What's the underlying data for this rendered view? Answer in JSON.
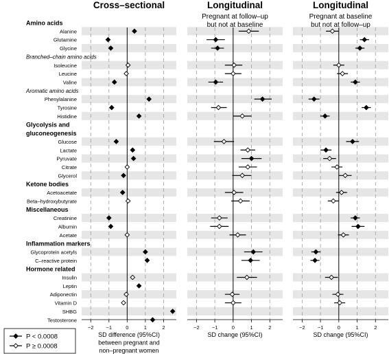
{
  "chart_data": {
    "type": "forest",
    "xlim": [
      -2.5,
      2.7
    ],
    "xticks": [
      -2,
      -1,
      0,
      1,
      2
    ],
    "tick_labels": [
      "−2",
      "−1",
      "0",
      "1",
      "2"
    ],
    "legend": {
      "placement": "bottom-left",
      "entries": [
        {
          "label": "P < 0.0008",
          "marker": "filled-diamond"
        },
        {
          "label": "P ≥ 0.0008",
          "marker": "open-diamond"
        }
      ]
    },
    "panels": [
      {
        "title": "Cross–sectional",
        "subtitle": [
          "",
          ""
        ],
        "xlabel": [
          "SD difference (95%CI)",
          "between pregnant and",
          "non–pregnant women"
        ]
      },
      {
        "title": "Longitudinal",
        "subtitle": [
          "Pregnant at follow–up",
          "but not at baseline"
        ],
        "xlabel": [
          "SD change (95%CI)",
          "",
          ""
        ]
      },
      {
        "title": "Longitudinal",
        "subtitle": [
          "Pregnant at baseline",
          "but not at follow–up"
        ],
        "xlabel": [
          "SD change (95%CI)",
          "",
          ""
        ]
      }
    ],
    "rows": [
      {
        "kind": "header",
        "label": "Amino acids"
      },
      {
        "kind": "item",
        "label": "Alanine",
        "shade": true,
        "values": [
          {
            "est": 0.4,
            "lo": 0.33,
            "hi": 0.47,
            "sig": true
          },
          {
            "est": 0.85,
            "lo": 0.3,
            "hi": 1.4,
            "sig": false
          },
          {
            "est": -0.35,
            "lo": -0.7,
            "hi": 0.0,
            "sig": false
          }
        ]
      },
      {
        "kind": "item",
        "label": "Glutamine",
        "shade": false,
        "values": [
          {
            "est": -1.05,
            "lo": -1.12,
            "hi": -0.98,
            "sig": true
          },
          {
            "est": -0.95,
            "lo": -1.45,
            "hi": -0.45,
            "sig": true
          },
          {
            "est": 1.4,
            "lo": 1.15,
            "hi": 1.65,
            "sig": true
          }
        ]
      },
      {
        "kind": "item",
        "label": "Glycine",
        "shade": true,
        "values": [
          {
            "est": -0.9,
            "lo": -0.97,
            "hi": -0.83,
            "sig": true
          },
          {
            "est": -0.85,
            "lo": -1.2,
            "hi": -0.5,
            "sig": true
          },
          {
            "est": 1.15,
            "lo": 0.9,
            "hi": 1.4,
            "sig": true
          }
        ]
      },
      {
        "kind": "subheader",
        "label": "Branched–chain amino acids"
      },
      {
        "kind": "item",
        "label": "Isoleucine",
        "shade": true,
        "values": [
          {
            "est": 0.05,
            "lo": -0.02,
            "hi": 0.12,
            "sig": false
          },
          {
            "est": 0.05,
            "lo": -0.45,
            "hi": 0.5,
            "sig": false
          },
          {
            "est": 0.0,
            "lo": -0.3,
            "hi": 0.3,
            "sig": false
          }
        ]
      },
      {
        "kind": "item",
        "label": "Leucine",
        "shade": false,
        "values": [
          {
            "est": -0.05,
            "lo": -0.12,
            "hi": 0.02,
            "sig": false
          },
          {
            "est": 0.0,
            "lo": -0.45,
            "hi": 0.45,
            "sig": false
          },
          {
            "est": 0.2,
            "lo": -0.1,
            "hi": 0.5,
            "sig": false
          }
        ]
      },
      {
        "kind": "item",
        "label": "Valine",
        "shade": true,
        "values": [
          {
            "est": -0.7,
            "lo": -0.77,
            "hi": -0.63,
            "sig": true
          },
          {
            "est": -0.95,
            "lo": -1.35,
            "hi": -0.55,
            "sig": true
          },
          {
            "est": 0.9,
            "lo": 0.65,
            "hi": 1.15,
            "sig": true
          }
        ]
      },
      {
        "kind": "subheader",
        "label": "Aromatic amino acids"
      },
      {
        "kind": "item",
        "label": "Phenylalanine",
        "shade": true,
        "values": [
          {
            "est": 1.2,
            "lo": 1.13,
            "hi": 1.27,
            "sig": true
          },
          {
            "est": 1.6,
            "lo": 1.15,
            "hi": 2.1,
            "sig": true
          },
          {
            "est": -1.35,
            "lo": -1.65,
            "hi": -1.05,
            "sig": true
          }
        ]
      },
      {
        "kind": "item",
        "label": "Tyrosine",
        "shade": false,
        "values": [
          {
            "est": -0.85,
            "lo": -0.92,
            "hi": -0.78,
            "sig": true
          },
          {
            "est": -0.8,
            "lo": -1.2,
            "hi": -0.35,
            "sig": false
          },
          {
            "est": 1.5,
            "lo": 1.25,
            "hi": 1.75,
            "sig": true
          }
        ]
      },
      {
        "kind": "item",
        "label": "Histidine",
        "shade": true,
        "values": [
          {
            "est": 0.65,
            "lo": 0.58,
            "hi": 0.72,
            "sig": true
          },
          {
            "est": 0.5,
            "lo": 0.0,
            "hi": 1.0,
            "sig": false
          },
          {
            "est": -0.75,
            "lo": -1.0,
            "hi": -0.5,
            "sig": true
          }
        ]
      },
      {
        "kind": "header",
        "label": "Glycolysis and"
      },
      {
        "kind": "header",
        "label": "gluconeogenesis"
      },
      {
        "kind": "item",
        "label": "Glucose",
        "shade": true,
        "values": [
          {
            "est": -0.6,
            "lo": -0.67,
            "hi": -0.53,
            "sig": true
          },
          {
            "est": -0.5,
            "lo": -1.05,
            "hi": 0.05,
            "sig": false
          },
          {
            "est": 0.75,
            "lo": 0.4,
            "hi": 1.1,
            "sig": true
          }
        ]
      },
      {
        "kind": "item",
        "label": "Lactate",
        "shade": false,
        "values": [
          {
            "est": 0.3,
            "lo": 0.23,
            "hi": 0.37,
            "sig": true
          },
          {
            "est": 0.8,
            "lo": 0.4,
            "hi": 1.2,
            "sig": false
          },
          {
            "est": -0.7,
            "lo": -1.0,
            "hi": -0.4,
            "sig": true
          }
        ]
      },
      {
        "kind": "item",
        "label": "Pyruvate",
        "shade": true,
        "values": [
          {
            "est": 0.35,
            "lo": 0.28,
            "hi": 0.42,
            "sig": true
          },
          {
            "est": 1.0,
            "lo": 0.45,
            "hi": 1.55,
            "sig": true
          },
          {
            "est": -0.5,
            "lo": -0.85,
            "hi": -0.15,
            "sig": false
          }
        ]
      },
      {
        "kind": "item",
        "label": "Citrate",
        "shade": false,
        "values": [
          {
            "est": 0.0,
            "lo": -0.07,
            "hi": 0.07,
            "sig": false
          },
          {
            "est": 0.8,
            "lo": 0.3,
            "hi": 1.3,
            "sig": false
          },
          {
            "est": -0.1,
            "lo": -0.4,
            "hi": 0.2,
            "sig": false
          }
        ]
      },
      {
        "kind": "item",
        "label": "Glycerol",
        "shade": true,
        "values": [
          {
            "est": -0.2,
            "lo": -0.27,
            "hi": -0.13,
            "sig": true
          },
          {
            "est": 0.5,
            "lo": -0.05,
            "hi": 1.0,
            "sig": false
          },
          {
            "est": 0.35,
            "lo": 0.0,
            "hi": 0.7,
            "sig": false
          }
        ]
      },
      {
        "kind": "header",
        "label": "Ketone bodies"
      },
      {
        "kind": "item",
        "label": "Acetoacetate",
        "shade": true,
        "values": [
          {
            "est": -0.25,
            "lo": -0.32,
            "hi": -0.18,
            "sig": true
          },
          {
            "est": 0.05,
            "lo": -0.45,
            "hi": 0.55,
            "sig": false
          },
          {
            "est": 0.15,
            "lo": -0.15,
            "hi": 0.45,
            "sig": false
          }
        ]
      },
      {
        "kind": "item",
        "label": "Beta–hydroxybutyrate",
        "shade": false,
        "values": [
          {
            "est": 0.05,
            "lo": -0.02,
            "hi": 0.12,
            "sig": false
          },
          {
            "est": 0.4,
            "lo": -0.1,
            "hi": 0.9,
            "sig": false
          },
          {
            "est": -0.3,
            "lo": -0.6,
            "hi": 0.0,
            "sig": false
          }
        ]
      },
      {
        "kind": "header",
        "label": "Miscellaneous"
      },
      {
        "kind": "item",
        "label": "Creatinine",
        "shade": true,
        "values": [
          {
            "est": -1.0,
            "lo": -1.07,
            "hi": -0.93,
            "sig": true
          },
          {
            "est": -0.75,
            "lo": -1.2,
            "hi": -0.3,
            "sig": false
          },
          {
            "est": 0.9,
            "lo": 0.65,
            "hi": 1.15,
            "sig": true
          }
        ]
      },
      {
        "kind": "item",
        "label": "Albumin",
        "shade": false,
        "values": [
          {
            "est": -0.9,
            "lo": -0.97,
            "hi": -0.83,
            "sig": true
          },
          {
            "est": -0.75,
            "lo": -1.25,
            "hi": -0.25,
            "sig": false
          },
          {
            "est": 1.05,
            "lo": 0.7,
            "hi": 1.4,
            "sig": true
          }
        ]
      },
      {
        "kind": "item",
        "label": "Acetate",
        "shade": true,
        "values": [
          {
            "est": 0.0,
            "lo": -0.07,
            "hi": 0.07,
            "sig": false
          },
          {
            "est": 0.25,
            "lo": -0.2,
            "hi": 0.7,
            "sig": false
          },
          {
            "est": 0.25,
            "lo": -0.05,
            "hi": 0.55,
            "sig": false
          }
        ]
      },
      {
        "kind": "header",
        "label": "Inflammation markers"
      },
      {
        "kind": "item",
        "label": "Glycoprotein acetyls",
        "shade": true,
        "values": [
          {
            "est": 1.0,
            "lo": 0.93,
            "hi": 1.07,
            "sig": true
          },
          {
            "est": 1.1,
            "lo": 0.6,
            "hi": 1.6,
            "sig": true
          },
          {
            "est": -1.25,
            "lo": -1.5,
            "hi": -1.0,
            "sig": true
          }
        ]
      },
      {
        "kind": "item",
        "label": "C–reactive protein",
        "shade": false,
        "values": [
          {
            "est": 1.1,
            "lo": 1.03,
            "hi": 1.17,
            "sig": true
          },
          {
            "est": 0.95,
            "lo": 0.45,
            "hi": 1.45,
            "sig": true
          },
          {
            "est": -1.3,
            "lo": -1.55,
            "hi": -1.05,
            "sig": true
          }
        ]
      },
      {
        "kind": "header",
        "label": "Hormone related"
      },
      {
        "kind": "item",
        "label": "Insulin",
        "shade": true,
        "values": [
          {
            "est": 0.3,
            "lo": 0.23,
            "hi": 0.37,
            "sig": false
          },
          {
            "est": 0.75,
            "lo": 0.2,
            "hi": 1.3,
            "sig": false
          },
          {
            "est": -0.4,
            "lo": -0.75,
            "hi": -0.05,
            "sig": false
          }
        ]
      },
      {
        "kind": "item",
        "label": "Leptin",
        "shade": false,
        "values": [
          {
            "est": 0.65,
            "lo": 0.58,
            "hi": 0.72,
            "sig": true
          },
          null,
          null
        ]
      },
      {
        "kind": "item",
        "label": "Adiponectin",
        "shade": true,
        "values": [
          {
            "est": -0.05,
            "lo": -0.12,
            "hi": 0.02,
            "sig": false
          },
          {
            "est": -0.05,
            "lo": -0.45,
            "hi": 0.35,
            "sig": false
          },
          {
            "est": -0.05,
            "lo": -0.35,
            "hi": 0.25,
            "sig": false
          }
        ]
      },
      {
        "kind": "item",
        "label": "Vitamin D",
        "shade": false,
        "values": [
          {
            "est": -0.2,
            "lo": -0.27,
            "hi": -0.13,
            "sig": false
          },
          {
            "est": 0.0,
            "lo": -0.45,
            "hi": 0.45,
            "sig": false
          },
          {
            "est": 0.05,
            "lo": -0.25,
            "hi": 0.35,
            "sig": false
          }
        ]
      },
      {
        "kind": "item",
        "label": "SHBG",
        "shade": true,
        "values": [
          {
            "est": 2.5,
            "lo": 2.43,
            "hi": 2.57,
            "sig": true
          },
          null,
          null
        ]
      },
      {
        "kind": "item",
        "label": "Testosterone",
        "shade": false,
        "values": [
          {
            "est": 1.4,
            "lo": 1.33,
            "hi": 1.47,
            "sig": true
          },
          null,
          null
        ]
      }
    ]
  }
}
